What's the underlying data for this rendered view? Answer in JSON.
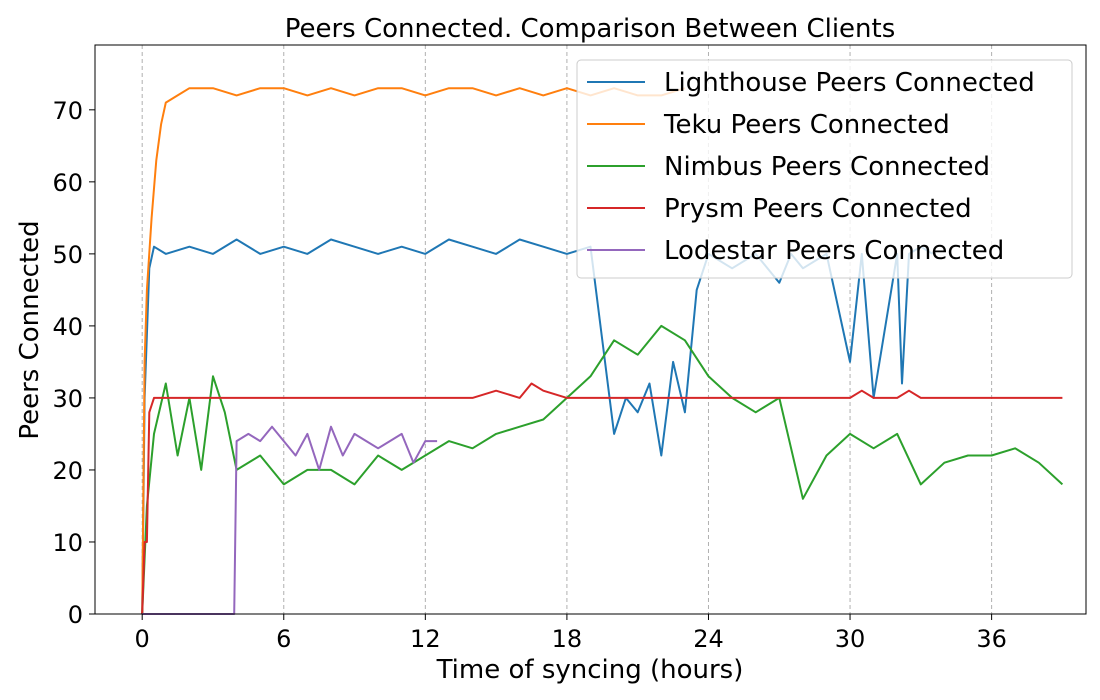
{
  "chart_data": {
    "type": "line",
    "title": "Peers Connected. Comparison Between Clients",
    "xlabel": "Time of syncing (hours)",
    "ylabel": "Peers Connected",
    "xlim": [
      -2,
      40
    ],
    "ylim": [
      0,
      79
    ],
    "xticks": [
      0,
      6,
      12,
      18,
      24,
      30,
      36
    ],
    "yticks": [
      0,
      10,
      20,
      30,
      40,
      50,
      60,
      70
    ],
    "grid": "vertical dashed",
    "legend_position": "top-right",
    "series": [
      {
        "name": "Lighthouse Peers Connected",
        "color": "#1f77b4",
        "x": [
          0,
          0.1,
          0.3,
          0.5,
          1,
          2,
          3,
          4,
          5,
          6,
          7,
          8,
          9,
          10,
          11,
          12,
          13,
          14,
          15,
          16,
          17,
          18,
          19,
          19.5,
          20,
          20.5,
          21,
          21.5,
          22,
          22.5,
          23,
          23.5,
          24,
          25,
          26,
          27,
          27.5,
          28,
          29,
          30,
          30.5,
          31,
          32,
          32.2,
          32.5,
          33,
          33.5
        ],
        "y": [
          0,
          30,
          48,
          51,
          50,
          51,
          50,
          52,
          50,
          51,
          50,
          52,
          51,
          50,
          51,
          50,
          52,
          51,
          50,
          52,
          51,
          50,
          51,
          38,
          25,
          30,
          28,
          32,
          22,
          35,
          28,
          45,
          50,
          48,
          50,
          46,
          50,
          48,
          50,
          35,
          50,
          30,
          50,
          32,
          50,
          51,
          50
        ]
      },
      {
        "name": "Teku Peers Connected",
        "color": "#ff7f0e",
        "x": [
          0,
          0.1,
          0.2,
          0.4,
          0.6,
          0.8,
          1,
          1.5,
          2,
          3,
          4,
          5,
          6,
          7,
          8,
          9,
          10,
          11,
          12,
          13,
          14,
          15,
          16,
          17,
          18,
          19,
          20,
          21,
          22,
          23
        ],
        "y": [
          0,
          35,
          45,
          55,
          63,
          68,
          71,
          72,
          73,
          73,
          72,
          73,
          73,
          72,
          73,
          72,
          73,
          73,
          72,
          73,
          73,
          72,
          73,
          72,
          73,
          72,
          73,
          72,
          72,
          73
        ]
      },
      {
        "name": "Nimbus Peers Connected",
        "color": "#2ca02c",
        "x": [
          0,
          0.2,
          0.5,
          1,
          1.5,
          2,
          2.5,
          3,
          3.5,
          4,
          5,
          6,
          7,
          8,
          9,
          10,
          11,
          12,
          13,
          14,
          15,
          16,
          17,
          18,
          19,
          20,
          21,
          22,
          23,
          24,
          25,
          26,
          27,
          28,
          29,
          30,
          31,
          32,
          33,
          34,
          35,
          36,
          37,
          38,
          39
        ],
        "y": [
          0,
          15,
          25,
          32,
          22,
          30,
          20,
          33,
          28,
          20,
          22,
          18,
          20,
          20,
          18,
          22,
          20,
          22,
          24,
          23,
          25,
          26,
          27,
          30,
          33,
          38,
          36,
          40,
          38,
          33,
          30,
          28,
          30,
          16,
          22,
          25,
          23,
          25,
          18,
          21,
          22,
          22,
          23,
          21,
          18
        ]
      },
      {
        "name": "Prysm Peers Connected",
        "color": "#d62728",
        "x": [
          0,
          0.1,
          0.2,
          0.3,
          0.5,
          1,
          2,
          4,
          6,
          8,
          10,
          12,
          14,
          15,
          16,
          16.5,
          17,
          18,
          20,
          22,
          24,
          26,
          28,
          30,
          30.5,
          31,
          32,
          32.5,
          33,
          36,
          39
        ],
        "y": [
          0,
          10,
          10,
          28,
          30,
          30,
          30,
          30,
          30,
          30,
          30,
          30,
          30,
          31,
          30,
          32,
          31,
          30,
          30,
          30,
          30,
          30,
          30,
          30,
          31,
          30,
          30,
          31,
          30,
          30,
          30
        ]
      },
      {
        "name": "Lodestar Peers Connected",
        "color": "#9467bd",
        "x": [
          0,
          1,
          2,
          3,
          3.9,
          4.0,
          4.5,
          5,
          5.5,
          6,
          6.5,
          7,
          7.5,
          8,
          8.5,
          9,
          9.5,
          10,
          10.5,
          11,
          11.5,
          12,
          12.5
        ],
        "y": [
          0,
          0,
          0,
          0,
          0,
          24,
          25,
          24,
          26,
          24,
          22,
          25,
          20,
          26,
          22,
          25,
          24,
          23,
          24,
          25,
          21,
          24,
          24
        ]
      }
    ]
  }
}
